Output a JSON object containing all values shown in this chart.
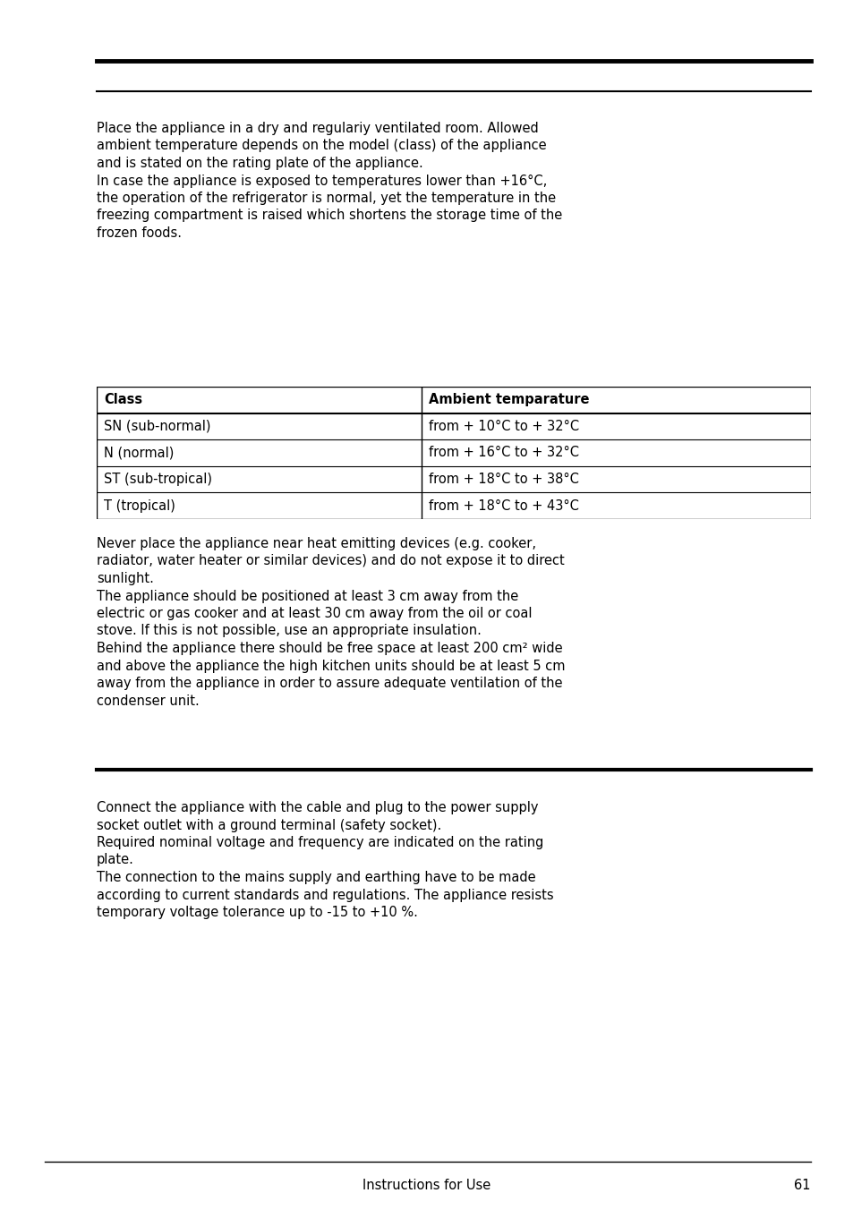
{
  "bg_color": "#ffffff",
  "text_color": "#000000",
  "page_width": 9.54,
  "page_height": 13.52,
  "section1_text1_lines": [
    "Place the appliance in a dry and regulariy ventilated room. Allowed",
    "ambient temperature depends on the model (class) of the appliance",
    "and is stated on the rating plate of the appliance.",
    "In case the appliance is exposed to temperatures lower than +16°C,",
    "the operation of the refrigerator is normal, yet the temperature in the",
    "freezing compartment is raised which shortens the storage time of the",
    "frozen foods."
  ],
  "table_col1_header": "Class",
  "table_col2_header": "Ambient temparature",
  "table_rows": [
    [
      "SN (sub-normal)",
      "from + 10°C to + 32°C"
    ],
    [
      "N (normal)",
      "from + 16°C to + 32°C"
    ],
    [
      "ST (sub-tropical)",
      "from + 18°C to + 38°C"
    ],
    [
      "T (tropical)",
      "from + 18°C to + 43°C"
    ]
  ],
  "section1_text2_lines": [
    "Never place the appliance near heat emitting devices (e.g. cooker,",
    "radiator, water heater or similar devices) and do not expose it to direct",
    "sunlight.",
    "The appliance should be positioned at least 3 cm away from the",
    "electric or gas cooker and at least 30 cm away from the oil or coal",
    "stove. If this is not possible, use an appropriate insulation.",
    "Behind the appliance there should be free space at least 200 cm² wide",
    "and above the appliance the high kitchen units should be at least 5 cm",
    "away from the appliance in order to assure adequate ventilation of the",
    "condenser unit."
  ],
  "section2_text_lines": [
    "Connect the appliance with the cable and plug to the power supply",
    "socket outlet with a ground terminal (safety socket).",
    "Required nominal voltage and frequency are indicated on the rating",
    "plate.",
    "The connection to the mains supply and earthing have to be made",
    "according to current standards and regulations. The appliance resists",
    "temporary voltage tolerance up to -15 to +10 %."
  ],
  "footer_text": "Instructions for Use",
  "footer_page": "61",
  "font_size_body": 10.5,
  "font_size_footer": 10.5
}
